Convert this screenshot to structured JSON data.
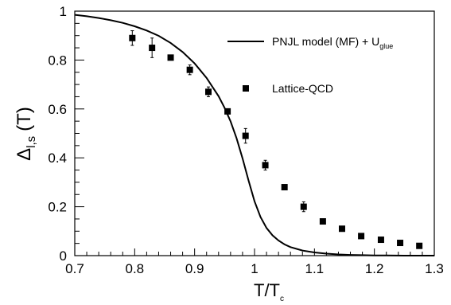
{
  "chart_data": {
    "type": "line",
    "xlabel": {
      "main": "T/T",
      "sub": "c"
    },
    "ylabel": {
      "main": "Δ",
      "sub": "l,s",
      "tail": "(T)"
    },
    "xlim": [
      0.7,
      1.3
    ],
    "ylim": [
      0,
      1
    ],
    "x_ticks": [
      "0.7",
      "0.8",
      "0.9",
      "1",
      "1.1",
      "1.2",
      "1.3"
    ],
    "y_ticks": [
      "0",
      "0.2",
      "0.4",
      "0.6",
      "0.8",
      "1"
    ],
    "grid": false,
    "legend_position": "top-right",
    "series": [
      {
        "name": "PNJL model (MF) + U",
        "name_sub": "glue",
        "style": "solid-line",
        "color": "#000000",
        "x": [
          0.7,
          0.72,
          0.74,
          0.76,
          0.78,
          0.8,
          0.82,
          0.84,
          0.86,
          0.88,
          0.9,
          0.92,
          0.94,
          0.95,
          0.96,
          0.97,
          0.98,
          0.99,
          1.0,
          1.01,
          1.02,
          1.03,
          1.04,
          1.05,
          1.06,
          1.08,
          1.1,
          1.12,
          1.14,
          1.16,
          1.18,
          1.2,
          1.22,
          1.25,
          1.28,
          1.3
        ],
        "y": [
          0.985,
          0.979,
          0.972,
          0.963,
          0.952,
          0.938,
          0.921,
          0.899,
          0.87,
          0.833,
          0.786,
          0.727,
          0.652,
          0.605,
          0.549,
          0.48,
          0.398,
          0.307,
          0.222,
          0.158,
          0.113,
          0.083,
          0.062,
          0.046,
          0.035,
          0.021,
          0.013,
          0.008,
          0.005,
          0.003,
          0.002,
          0.001,
          0.001,
          0.0,
          0.0,
          0.0
        ]
      },
      {
        "name": "Lattice-QCD",
        "style": "square-markers",
        "color": "#000000",
        "x": [
          0.796,
          0.829,
          0.86,
          0.892,
          0.923,
          0.955,
          0.985,
          1.018,
          1.05,
          1.082,
          1.114,
          1.146,
          1.178,
          1.211,
          1.243,
          1.275
        ],
        "y": [
          0.89,
          0.85,
          0.81,
          0.76,
          0.67,
          0.59,
          0.49,
          0.37,
          0.28,
          0.2,
          0.14,
          0.11,
          0.08,
          0.065,
          0.052,
          0.04
        ],
        "yerr": [
          0.03,
          0.04,
          0.0,
          0.02,
          0.02,
          0.0,
          0.03,
          0.02,
          0.0,
          0.02,
          0.0,
          0.0,
          0.0,
          0.0,
          0.0,
          0.0
        ]
      }
    ]
  }
}
